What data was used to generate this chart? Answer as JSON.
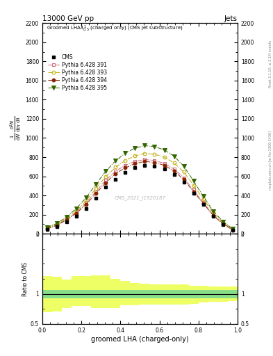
{
  "title": "13000 GeV pp",
  "title_right": "Jets",
  "xlabel": "groomed LHA (charged-only)",
  "ylabel": "1 / mathrmN  d^2mathrmN / dp_T dlambda",
  "ylabel_ratio": "Ratio to CMS",
  "watermark": "CMS_2021_I1920187",
  "right_label1": "mcplots.cern.ch [arXiv:1306.3436]",
  "right_label2": "Rivet 3.1.10, ≥ 2.1M events",
  "xlim": [
    0,
    1
  ],
  "ylim_main": [
    0,
    2200
  ],
  "ylim_ratio": [
    0.5,
    2.0
  ],
  "yticks_main": [
    0,
    200,
    400,
    600,
    800,
    1000,
    1200,
    1400,
    1600,
    1800,
    2000,
    2200
  ],
  "yticks_ratio": [
    0.5,
    1.0,
    2.0
  ],
  "x_data": [
    0.025,
    0.075,
    0.125,
    0.175,
    0.225,
    0.275,
    0.325,
    0.375,
    0.425,
    0.475,
    0.525,
    0.575,
    0.625,
    0.675,
    0.725,
    0.775,
    0.825,
    0.875,
    0.925,
    0.975
  ],
  "cms_data": [
    48,
    75,
    125,
    185,
    265,
    375,
    485,
    570,
    640,
    690,
    715,
    705,
    675,
    615,
    535,
    420,
    305,
    185,
    97,
    38
  ],
  "cms_color": "#000000",
  "pythia391_data": [
    58,
    92,
    150,
    225,
    325,
    445,
    558,
    652,
    715,
    755,
    775,
    765,
    735,
    675,
    585,
    455,
    325,
    198,
    108,
    43
  ],
  "pythia391_color": "#cc6677",
  "pythia391_label": "Pythia 6.428 391",
  "pythia393_data": [
    63,
    98,
    160,
    240,
    345,
    475,
    595,
    695,
    765,
    815,
    838,
    830,
    800,
    740,
    645,
    505,
    362,
    218,
    118,
    48
  ],
  "pythia393_color": "#bbaa00",
  "pythia393_label": "Pythia 6.428 393",
  "pythia394_data": [
    52,
    87,
    145,
    215,
    308,
    422,
    532,
    628,
    688,
    733,
    755,
    745,
    715,
    655,
    565,
    440,
    315,
    192,
    102,
    40
  ],
  "pythia394_color": "#882200",
  "pythia394_label": "Pythia 6.428 394",
  "pythia395_data": [
    68,
    108,
    175,
    265,
    378,
    518,
    652,
    762,
    840,
    895,
    920,
    910,
    875,
    810,
    705,
    550,
    390,
    237,
    128,
    52
  ],
  "pythia395_color": "#336600",
  "pythia395_label": "Pythia 6.428 395",
  "ratio_x_edges": [
    0.0,
    0.05,
    0.1,
    0.15,
    0.2,
    0.25,
    0.3,
    0.35,
    0.4,
    0.45,
    0.5,
    0.55,
    0.6,
    0.65,
    0.7,
    0.75,
    0.8,
    0.85,
    0.9,
    0.95,
    1.0
  ],
  "ratio_yellow_lo": [
    0.7,
    0.71,
    0.76,
    0.8,
    0.8,
    0.77,
    0.76,
    0.77,
    0.81,
    0.81,
    0.82,
    0.82,
    0.82,
    0.82,
    0.82,
    0.83,
    0.86,
    0.87,
    0.87,
    0.88
  ],
  "ratio_yellow_hi": [
    1.3,
    1.29,
    1.24,
    1.3,
    1.3,
    1.31,
    1.31,
    1.25,
    1.21,
    1.18,
    1.17,
    1.16,
    1.16,
    1.16,
    1.16,
    1.14,
    1.13,
    1.12,
    1.12,
    1.12
  ],
  "ratio_green_lo": [
    0.93,
    0.93,
    0.93,
    0.93,
    0.93,
    0.93,
    0.93,
    0.93,
    0.93,
    0.93,
    0.93,
    0.93,
    0.93,
    0.93,
    0.93,
    0.93,
    0.93,
    0.93,
    0.93,
    0.93
  ],
  "ratio_green_hi": [
    1.07,
    1.07,
    1.07,
    1.07,
    1.07,
    1.07,
    1.07,
    1.07,
    1.07,
    1.07,
    1.07,
    1.07,
    1.07,
    1.07,
    1.07,
    1.07,
    1.07,
    1.07,
    1.07,
    1.07
  ],
  "green_color": "#88dd88",
  "yellow_color": "#eeff66",
  "bg_color": "#ffffff"
}
